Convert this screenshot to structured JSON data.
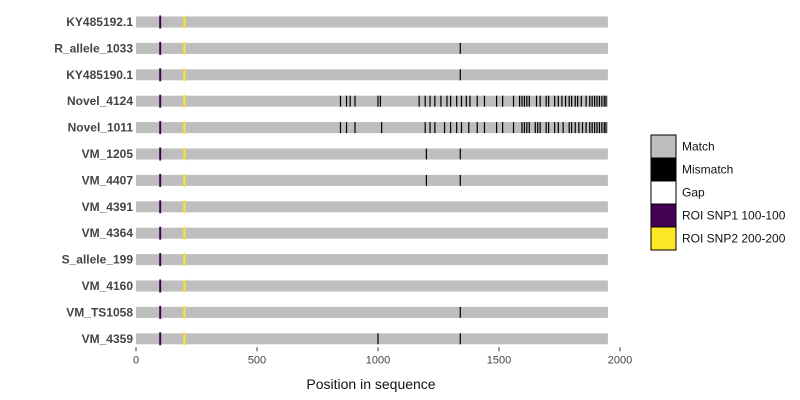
{
  "chart_data": {
    "type": "alignment",
    "title": "",
    "xlabel": "Position in sequence",
    "ylabel": "",
    "xlim": [
      0,
      1950
    ],
    "x_ticks": [
      0,
      500,
      1000,
      1500,
      2000
    ],
    "grid": false,
    "legend_position": "right",
    "sequence_length": 1950,
    "colors": {
      "Match": "#bebebe",
      "Mismatch": "#000000",
      "Gap": "#ffffff",
      "ROI SNP1 100-100": "#440154",
      "ROI SNP2 200-200": "#fde725"
    },
    "legend": [
      {
        "key": "Match",
        "label": "Match"
      },
      {
        "key": "Mismatch",
        "label": "Mismatch"
      },
      {
        "key": "Gap",
        "label": "Gap"
      },
      {
        "key": "ROI SNP1 100-100",
        "label": "ROI SNP1 100-100"
      },
      {
        "key": "ROI SNP2 200-200",
        "label": "ROI SNP2 200-200"
      }
    ],
    "roi": [
      {
        "key": "ROI SNP1 100-100",
        "position": 100
      },
      {
        "key": "ROI SNP2 200-200",
        "position": 200
      }
    ],
    "sequences": [
      {
        "name": "KY485192.1",
        "mismatches": []
      },
      {
        "name": "R_allele_1033",
        "mismatches": [
          1340
        ]
      },
      {
        "name": "KY485190.1",
        "mismatches": [
          1340
        ]
      },
      {
        "name": "Novel_4124",
        "mismatches": [
          845,
          870,
          885,
          905,
          1000,
          1010,
          1170,
          1195,
          1215,
          1235,
          1260,
          1285,
          1300,
          1325,
          1345,
          1365,
          1380,
          1410,
          1440,
          1490,
          1515,
          1560,
          1585,
          1595,
          1605,
          1615,
          1625,
          1655,
          1670,
          1695,
          1705,
          1730,
          1745,
          1760,
          1775,
          1790,
          1800,
          1815,
          1825,
          1840,
          1860,
          1875,
          1885,
          1895,
          1905,
          1915,
          1925,
          1935,
          1942
        ]
      },
      {
        "name": "Novel_1011",
        "mismatches": [
          845,
          870,
          905,
          1015,
          1195,
          1215,
          1235,
          1275,
          1300,
          1325,
          1345,
          1375,
          1410,
          1440,
          1490,
          1515,
          1560,
          1595,
          1605,
          1615,
          1625,
          1650,
          1660,
          1670,
          1695,
          1705,
          1730,
          1745,
          1765,
          1790,
          1800,
          1815,
          1830,
          1845,
          1860,
          1875,
          1885,
          1895,
          1905,
          1915,
          1925,
          1935,
          1942
        ]
      },
      {
        "name": "VM_1205",
        "mismatches": [
          1200,
          1340
        ]
      },
      {
        "name": "VM_4407",
        "mismatches": [
          1200,
          1340
        ]
      },
      {
        "name": "VM_4391",
        "mismatches": []
      },
      {
        "name": "VM_4364",
        "mismatches": []
      },
      {
        "name": "S_allele_199",
        "mismatches": []
      },
      {
        "name": "VM_4160",
        "mismatches": []
      },
      {
        "name": "VM_TS1058",
        "mismatches": [
          1340
        ]
      },
      {
        "name": "VM_4359",
        "mismatches": [
          1000,
          1340
        ]
      }
    ]
  }
}
